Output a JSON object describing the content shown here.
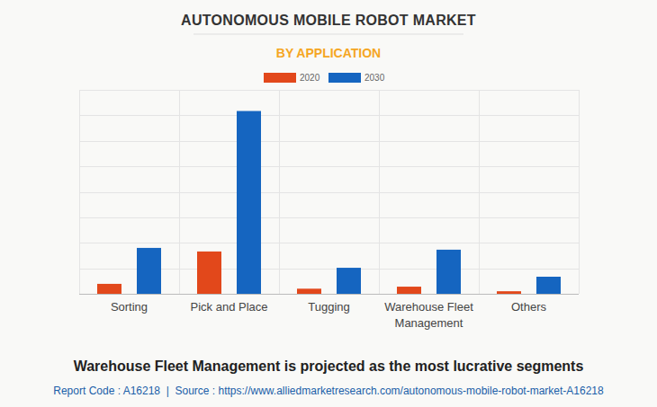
{
  "chart_data": {
    "type": "bar",
    "title": "AUTONOMOUS MOBILE ROBOT MARKET",
    "subtitle": "BY APPLICATION",
    "categories": [
      "Sorting",
      "Pick and Place",
      "Tugging",
      "Warehouse Fleet Management",
      "Others"
    ],
    "series": [
      {
        "name": "2020",
        "color": "#e2481b",
        "values": [
          0.39,
          1.66,
          0.2,
          0.28,
          0.1
        ]
      },
      {
        "name": "2030",
        "color": "#1565c0",
        "values": [
          1.8,
          7.17,
          1.02,
          1.73,
          0.67
        ]
      }
    ],
    "ylim": [
      0,
      8
    ],
    "yticks": [
      0,
      1,
      2,
      3,
      4,
      5,
      6,
      7,
      8
    ],
    "grid": true,
    "tick_labels": "x",
    "legend": "top",
    "annotations": [
      "Warehouse Fleet Management is projected as the most lucrative segments",
      "Report Code : A16218  |  Source : https://www.alliedmarketresearch.com/autonomous-mobile-robot-market-A16218"
    ]
  }
}
